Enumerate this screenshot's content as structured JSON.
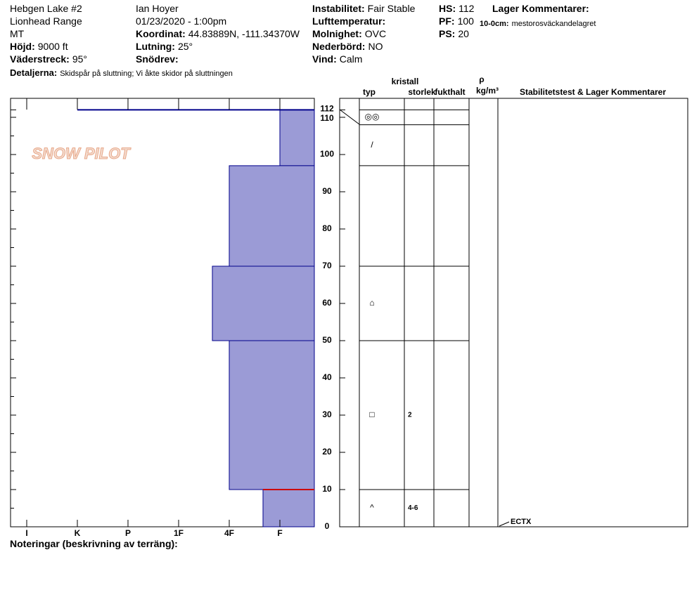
{
  "header": {
    "location": "Hebgen Lake #2",
    "range": "Lionhead Range",
    "state": "MT",
    "elevation_label": "Höjd:",
    "elevation": "9000 ft",
    "aspect_label": "Väderstreck:",
    "aspect": "95°",
    "observer": "Ian Hoyer",
    "datetime": "01/23/2020 - 1:00pm",
    "coord_label": "Koordinat:",
    "coord": "44.83889N, -111.34370W",
    "slope_label": "Lutning:",
    "slope": "25°",
    "drift_label": "Snödrev:",
    "details_label": "Detaljerna:",
    "details": "Skidspår på sluttning;  Vi åkte skidor på sluttningen",
    "stability_label": "Instabilitet:",
    "stability": "Fair Stable",
    "airtemp_label": "Lufttemperatur:",
    "sky_label": "Molnighet:",
    "sky": "OVC",
    "precip_label": "Nederbörd:",
    "precip": "NO",
    "wind_label": "Vind:",
    "wind": "Calm",
    "hs_label": "HS:",
    "hs": 112,
    "pf_label": "PF:",
    "pf": 100,
    "ps_label": "PS:",
    "ps": 20,
    "layer_comments_label": "Lager Kommentarer:",
    "layer_comments": [
      {
        "label": "10-0cm:",
        "text": "mestorosväckandelagret"
      }
    ]
  },
  "chart_data": {
    "type": "snow-profile",
    "logo": "SNOW PILOT",
    "ylim": [
      0,
      112
    ],
    "yticks": [
      0,
      10,
      20,
      30,
      40,
      50,
      60,
      70,
      80,
      90,
      100,
      110,
      112
    ],
    "hardness_ticks": [
      "I",
      "K",
      "P",
      "1F",
      "4F",
      "F"
    ],
    "color": "#9b9bd6",
    "layers": [
      {
        "top": 112,
        "bottom": 97,
        "hardness": "F"
      },
      {
        "top": 97,
        "bottom": 70,
        "hardness": "4F"
      },
      {
        "top": 70,
        "bottom": 50,
        "hardness": "4F+"
      },
      {
        "top": 50,
        "bottom": 10,
        "hardness": "4F"
      },
      {
        "top": 10,
        "bottom": 0,
        "hardness": "F+"
      }
    ],
    "critical_boundaries": [
      10
    ],
    "columns": {
      "type": "typ",
      "crystal": "kristall",
      "size": "storlek",
      "moisture": "fukthalt",
      "rho": "ρ",
      "density_unit": "kg/m³",
      "comments": "Stabilitetstest & Lager Kommentarer"
    },
    "grain_layers": [
      {
        "top": 112,
        "bottom": 108,
        "symbol": "◎◎",
        "size": null
      },
      {
        "top": 108,
        "bottom": 97,
        "symbol": "/",
        "size": null
      },
      {
        "top": 97,
        "bottom": 70,
        "symbol": null,
        "size": null
      },
      {
        "top": 70,
        "bottom": 50,
        "symbol": "⌂",
        "size": null
      },
      {
        "top": 50,
        "bottom": 10,
        "symbol": "□",
        "size": "2"
      },
      {
        "top": 10,
        "bottom": 0,
        "symbol": "^",
        "size": "4-6"
      }
    ],
    "stability_tests": [
      {
        "height": 0,
        "result": "ECTX"
      }
    ],
    "notes_label": "Noteringar (beskrivning av terräng):"
  }
}
